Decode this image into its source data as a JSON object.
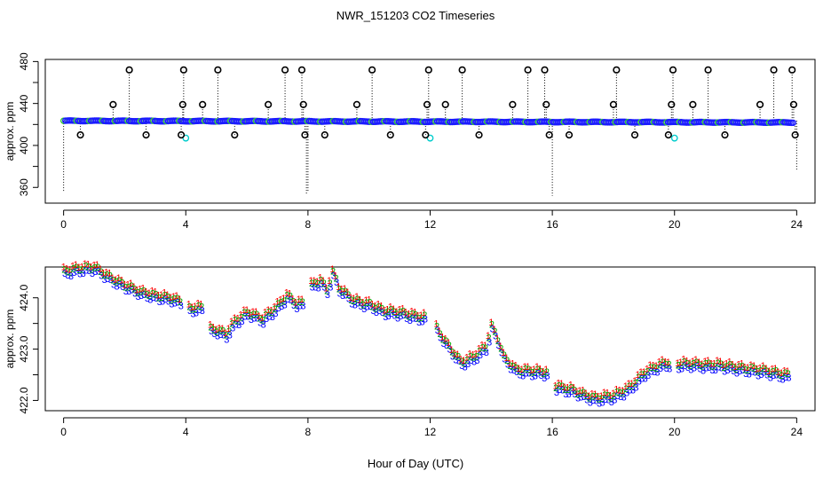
{
  "page": {
    "title": "NWR_151203  CO2 Timeseries",
    "xlabel": "Hour of Day (UTC)"
  },
  "colors": {
    "background": "#ffffff",
    "axis": "#000000",
    "raw_outlier": "#000000",
    "raw_flagged": "#00cccc",
    "raw_series": "#1a1aff",
    "raw_series_alt": "#33cc33",
    "series1": "#ff0000",
    "series2": "#00aa00",
    "series3": "#0000ff"
  },
  "chart_data": [
    {
      "type": "scatter",
      "title": "NWR_151203  CO2 Timeseries",
      "xlabel": "",
      "ylabel": "approx. ppm",
      "xlim": [
        -0.6,
        24.6
      ],
      "ylim": [
        345,
        482
      ],
      "xticks": [
        0,
        4,
        8,
        12,
        16,
        20,
        24
      ],
      "yticks": [
        360,
        400,
        440,
        480
      ],
      "yticks_minor": [
        380,
        420,
        460
      ],
      "grid": false,
      "baseline_ppm": 423.5,
      "outliers_high": [
        {
          "x": 1.62,
          "y": 439
        },
        {
          "x": 2.15,
          "y": 472
        },
        {
          "x": 3.9,
          "y": 439
        },
        {
          "x": 3.93,
          "y": 472
        },
        {
          "x": 4.55,
          "y": 439
        },
        {
          "x": 5.05,
          "y": 472
        },
        {
          "x": 6.7,
          "y": 439
        },
        {
          "x": 7.25,
          "y": 472
        },
        {
          "x": 7.8,
          "y": 472
        },
        {
          "x": 7.85,
          "y": 439
        },
        {
          "x": 9.6,
          "y": 439
        },
        {
          "x": 10.1,
          "y": 472
        },
        {
          "x": 11.9,
          "y": 439
        },
        {
          "x": 11.95,
          "y": 472
        },
        {
          "x": 12.5,
          "y": 439
        },
        {
          "x": 13.05,
          "y": 472
        },
        {
          "x": 14.7,
          "y": 439
        },
        {
          "x": 15.2,
          "y": 472
        },
        {
          "x": 15.75,
          "y": 472
        },
        {
          "x": 15.8,
          "y": 439
        },
        {
          "x": 18.1,
          "y": 472
        },
        {
          "x": 18.0,
          "y": 439
        },
        {
          "x": 19.9,
          "y": 439
        },
        {
          "x": 19.95,
          "y": 472
        },
        {
          "x": 20.6,
          "y": 439
        },
        {
          "x": 21.1,
          "y": 472
        },
        {
          "x": 22.8,
          "y": 439
        },
        {
          "x": 23.25,
          "y": 472
        },
        {
          "x": 23.85,
          "y": 472
        },
        {
          "x": 23.9,
          "y": 439
        }
      ],
      "outliers_low": [
        {
          "x": 0.55,
          "y": 410
        },
        {
          "x": 2.7,
          "y": 410
        },
        {
          "x": 3.85,
          "y": 410
        },
        {
          "x": 5.6,
          "y": 410
        },
        {
          "x": 7.9,
          "y": 410
        },
        {
          "x": 8.55,
          "y": 410
        },
        {
          "x": 10.7,
          "y": 410
        },
        {
          "x": 11.85,
          "y": 410
        },
        {
          "x": 13.6,
          "y": 410
        },
        {
          "x": 15.9,
          "y": 410
        },
        {
          "x": 16.55,
          "y": 410
        },
        {
          "x": 18.7,
          "y": 410
        },
        {
          "x": 19.8,
          "y": 410
        },
        {
          "x": 21.65,
          "y": 410
        },
        {
          "x": 23.95,
          "y": 410
        }
      ],
      "flagged_points": [
        {
          "x": 4.0,
          "y": 407
        },
        {
          "x": 12.0,
          "y": 407
        },
        {
          "x": 20.0,
          "y": 407
        }
      ],
      "vertical_drops": [
        {
          "x": 0.0,
          "y_min": 355
        },
        {
          "x": 7.95,
          "y_min": 353
        },
        {
          "x": 8.0,
          "y_min": 355
        },
        {
          "x": 16.0,
          "y_min": 352
        },
        {
          "x": 24.0,
          "y_min": 376
        }
      ]
    },
    {
      "type": "scatter",
      "title": "",
      "xlabel": "Hour of Day (UTC)",
      "ylabel": "approx. ppm",
      "xlim": [
        -0.6,
        24.6
      ],
      "ylim": [
        421.8,
        424.6
      ],
      "xticks": [
        0,
        4,
        8,
        12,
        16,
        20,
        24
      ],
      "yticks": [
        "422.0",
        "423.0",
        "424.0"
      ],
      "yticks_minor": [
        422.5,
        423.5
      ],
      "grid": false,
      "series_markers": [
        "1",
        "2",
        "3"
      ],
      "series_offsets": [
        0.05,
        0.0,
        -0.08
      ],
      "x_start": 0.0,
      "x_end": 23.7,
      "x_step": 0.1,
      "point_jitter": 0.04,
      "data_gaps": [
        [
          3.9,
          4.05
        ],
        [
          4.55,
          4.7
        ],
        [
          7.85,
          8.05
        ],
        [
          11.85,
          12.1
        ],
        [
          15.85,
          16.05
        ],
        [
          19.85,
          20.05
        ]
      ],
      "profile": [
        [
          0.0,
          424.52
        ],
        [
          0.5,
          424.58
        ],
        [
          1.0,
          424.6
        ],
        [
          1.5,
          424.4
        ],
        [
          2.0,
          424.25
        ],
        [
          2.5,
          424.12
        ],
        [
          3.0,
          424.05
        ],
        [
          3.5,
          424.0
        ],
        [
          3.9,
          423.92
        ],
        [
          4.1,
          423.8
        ],
        [
          4.5,
          423.82
        ],
        [
          4.7,
          423.4
        ],
        [
          5.0,
          423.38
        ],
        [
          5.3,
          423.3
        ],
        [
          5.6,
          423.55
        ],
        [
          6.0,
          423.72
        ],
        [
          6.5,
          423.6
        ],
        [
          7.0,
          423.85
        ],
        [
          7.3,
          424.05
        ],
        [
          7.6,
          423.9
        ],
        [
          7.85,
          423.9
        ],
        [
          8.1,
          424.25
        ],
        [
          8.4,
          424.35
        ],
        [
          8.6,
          424.15
        ],
        [
          8.8,
          424.5
        ],
        [
          9.0,
          424.2
        ],
        [
          9.5,
          423.95
        ],
        [
          10.0,
          423.88
        ],
        [
          10.5,
          423.75
        ],
        [
          11.0,
          423.72
        ],
        [
          11.5,
          423.65
        ],
        [
          11.9,
          423.62
        ],
        [
          12.1,
          423.5
        ],
        [
          12.6,
          423.05
        ],
        [
          13.0,
          422.75
        ],
        [
          13.4,
          422.85
        ],
        [
          13.8,
          423.05
        ],
        [
          14.0,
          423.45
        ],
        [
          14.2,
          423.2
        ],
        [
          14.4,
          422.85
        ],
        [
          14.8,
          422.6
        ],
        [
          15.4,
          422.58
        ],
        [
          15.9,
          422.55
        ],
        [
          16.1,
          422.28
        ],
        [
          16.6,
          422.22
        ],
        [
          17.0,
          422.12
        ],
        [
          17.4,
          422.05
        ],
        [
          18.0,
          422.1
        ],
        [
          18.5,
          422.25
        ],
        [
          19.0,
          422.55
        ],
        [
          19.5,
          422.7
        ],
        [
          19.9,
          422.75
        ],
        [
          20.1,
          422.72
        ],
        [
          20.6,
          422.72
        ],
        [
          21.0,
          422.7
        ],
        [
          21.5,
          422.7
        ],
        [
          22.0,
          422.65
        ],
        [
          22.5,
          422.62
        ],
        [
          23.0,
          422.58
        ],
        [
          23.7,
          422.5
        ]
      ]
    }
  ]
}
